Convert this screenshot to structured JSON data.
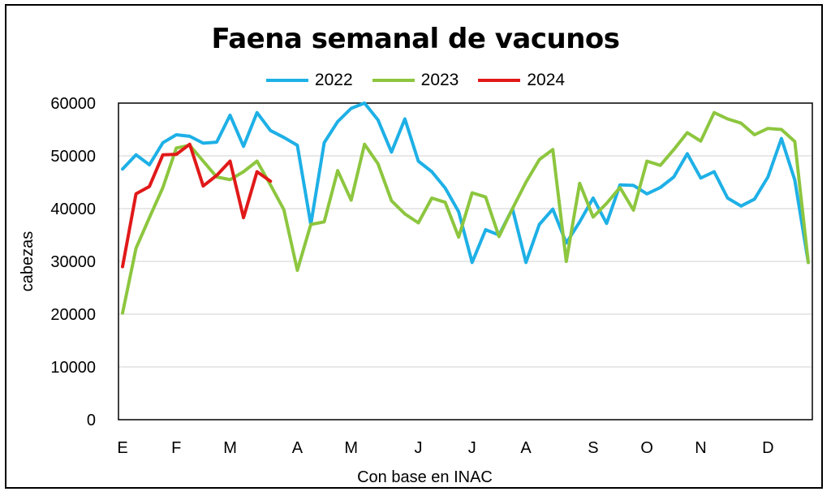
{
  "colors": {
    "s2022": "#1eb0e6",
    "s2023": "#8dc63f",
    "s2024": "#e11919",
    "grid": "#d0d0d0",
    "axis": "#000000"
  },
  "chart_data": {
    "type": "line",
    "title": "Faena semanal de vacunos",
    "xlabel": "Con base en INAC",
    "ylabel": "cabezas",
    "ylim": [
      0,
      60000
    ],
    "yticks": [
      0,
      10000,
      20000,
      30000,
      40000,
      50000,
      60000
    ],
    "month_labels": [
      "E",
      "F",
      "M",
      "A",
      "M",
      "J",
      "J",
      "A",
      "S",
      "O",
      "N",
      "D"
    ],
    "month_weeks": [
      1,
      5,
      9,
      14,
      18,
      23,
      27,
      31,
      36,
      40,
      44,
      49
    ],
    "weeks_total": 52,
    "grid": true,
    "legend_position": "top-center",
    "series": [
      {
        "name": "2022",
        "color": "#1eb0e6",
        "values": [
          47500,
          50200,
          48300,
          52500,
          54000,
          53700,
          52400,
          52600,
          57700,
          51800,
          58200,
          54800,
          53500,
          52000,
          37000,
          52500,
          56500,
          59000,
          60000,
          56800,
          50700,
          57000,
          49000,
          47000,
          43900,
          39400,
          29800,
          36000,
          35000,
          40000,
          29800,
          37000,
          39900,
          33500,
          37500,
          42000,
          37200,
          44500,
          44400,
          42800,
          44000,
          46000,
          50400,
          45800,
          47000,
          42000,
          40500,
          41800,
          46000,
          53300,
          45400,
          29800
        ]
      },
      {
        "name": "2023",
        "color": "#8dc63f",
        "values": [
          20200,
          32500,
          38300,
          44000,
          51500,
          52000,
          49000,
          46000,
          45500,
          47000,
          49000,
          44500,
          39800,
          28300,
          37000,
          37500,
          47200,
          41600,
          52200,
          48500,
          41500,
          39000,
          37300,
          42000,
          41200,
          34600,
          43000,
          42200,
          34700,
          40000,
          45000,
          49300,
          51200,
          30000,
          44800,
          38400,
          41000,
          44000,
          39700,
          49000,
          48200,
          51200,
          54400,
          52800,
          58200,
          57000,
          56200,
          54000,
          55200,
          55000,
          52700,
          29800
        ]
      },
      {
        "name": "2024",
        "color": "#e11919",
        "values": [
          29000,
          42800,
          44200,
          50200,
          50300,
          52200,
          44300,
          46300,
          49000,
          38300,
          47000,
          45200
        ]
      }
    ]
  }
}
